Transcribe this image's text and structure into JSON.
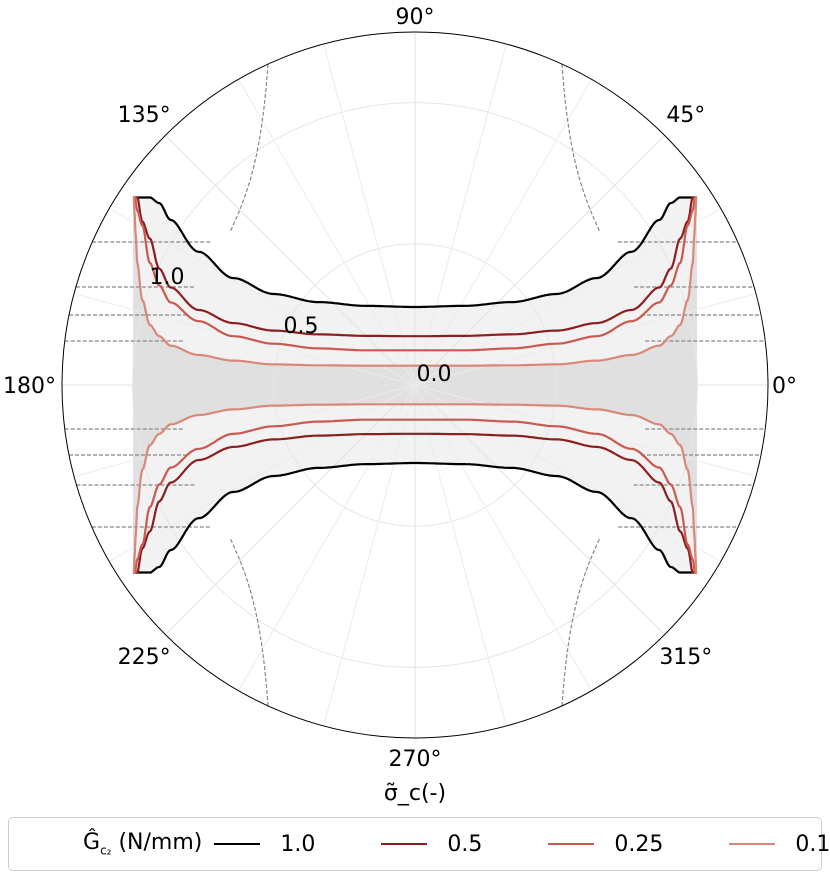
{
  "chart_data": {
    "type": "polar-line",
    "x_label": "σ̃_c(-)",
    "angle_ticks": [
      "0°",
      "45°",
      "90°",
      "135°",
      "180°",
      "225°",
      "270°",
      "315°"
    ],
    "radial_ticks": [
      "0.0",
      "0.5",
      "1.0"
    ],
    "r_max": 1.25,
    "legend": {
      "title": "Ĝ_c2 (N/mm)",
      "placement": "bottom"
    },
    "series": [
      {
        "name": "1.0",
        "color": "#000000",
        "theta_deg": [
          0,
          15,
          20,
          25,
          30,
          40,
          50,
          60,
          70,
          80,
          90
        ],
        "r": [
          1.0,
          1.0,
          1.0,
          0.97,
          0.88,
          0.71,
          0.57,
          0.485,
          0.442,
          0.422,
          0.416
        ]
      },
      {
        "name": "0.5",
        "color": "#8b1f1f",
        "theta_deg": [
          0,
          10,
          15,
          20,
          25,
          30,
          40,
          50,
          60,
          70,
          80,
          90
        ],
        "r": [
          1.0,
          1.0,
          0.87,
          0.78,
          0.62,
          0.52,
          0.4,
          0.33,
          0.29,
          0.27,
          0.262,
          0.26
        ]
      },
      {
        "name": "0.25",
        "color": "#c85a4f",
        "theta_deg": [
          0,
          7,
          10,
          15,
          20,
          25,
          30,
          40,
          50,
          60,
          70,
          80,
          90
        ],
        "r": [
          1.0,
          1.0,
          0.93,
          0.85,
          0.65,
          0.53,
          0.44,
          0.34,
          0.26,
          0.22,
          0.195,
          0.185,
          0.185
        ]
      },
      {
        "name": "0.1",
        "color": "#d88878",
        "theta_deg": [
          0,
          4,
          6,
          8,
          10,
          15,
          20,
          25,
          30,
          40,
          50,
          60,
          70,
          80,
          90
        ],
        "r": [
          1.0,
          1.0,
          0.92,
          0.8,
          0.65,
          0.45,
          0.32,
          0.26,
          0.21,
          0.16,
          0.13,
          0.11,
          0.105,
          0.103,
          0.103
        ]
      }
    ],
    "shaded_region": "inside series 1.0",
    "grid": true
  }
}
